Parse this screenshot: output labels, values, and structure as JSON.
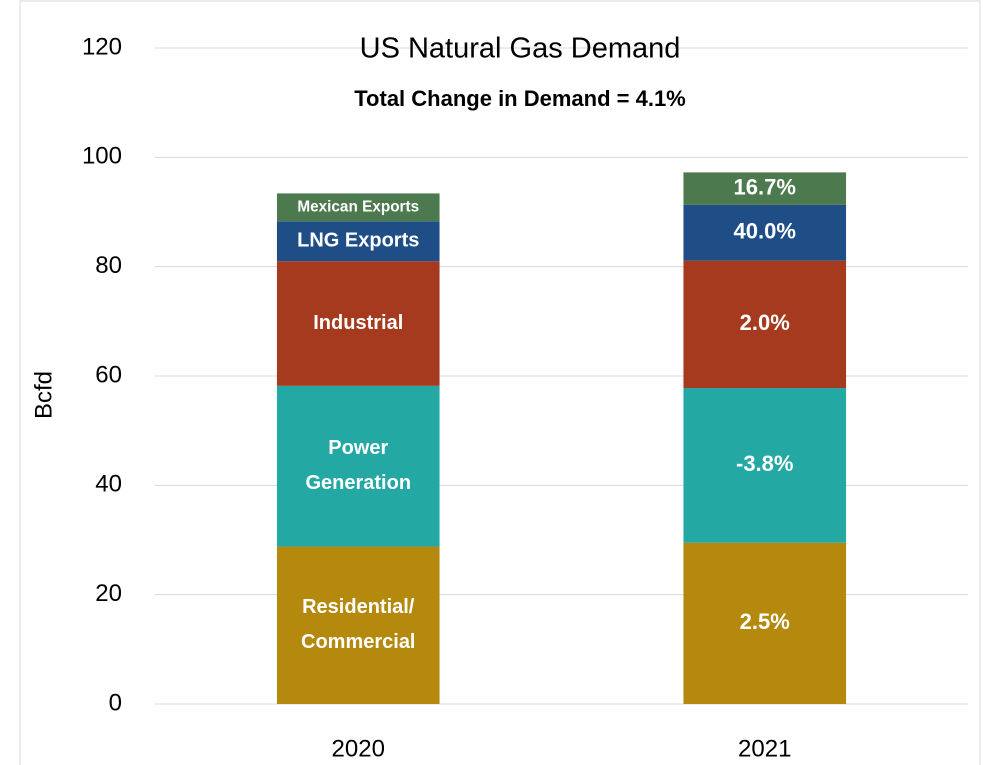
{
  "chart_data": {
    "type": "stacked-bar",
    "title": "US Natural Gas Demand",
    "subtitle": "Total Change in Demand = 4.1%",
    "y_label": "Bcfd",
    "categories": [
      "2020",
      "2021"
    ],
    "series": [
      {
        "name": [
          "Residential/",
          "Commercial"
        ],
        "color": "#b5880e",
        "values": [
          28.8,
          29.5
        ],
        "change_labels": [
          "2.5%"
        ]
      },
      {
        "name": [
          "Power",
          "Generation"
        ],
        "color": "#23a8a4",
        "values": [
          29.4,
          28.3
        ],
        "change_labels": [
          "-3.8%"
        ]
      },
      {
        "name": [
          "Industrial"
        ],
        "color": "#a63a1f",
        "values": [
          22.8,
          23.3
        ],
        "change_labels": [
          "2.0%"
        ]
      },
      {
        "name": [
          "LNG Exports"
        ],
        "color": "#1f4e87",
        "values": [
          7.3,
          10.2
        ],
        "change_labels": [
          "40.0%"
        ]
      },
      {
        "name": [
          "Mexican Exports"
        ],
        "color": "#4c7a4e",
        "values": [
          5.1,
          5.95
        ],
        "change_labels": [
          "16.7%"
        ]
      }
    ],
    "ylim": [
      0,
      120
    ],
    "yticks": [
      0,
      20,
      40,
      60,
      80,
      100,
      120
    ],
    "grid": true
  }
}
